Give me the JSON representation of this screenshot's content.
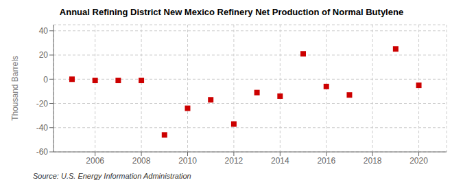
{
  "chart_data": {
    "type": "scatter",
    "title": "Annual Refining District New Mexico Refinery Net Production of Normal Butylene",
    "ylabel": "Thousand Barrels",
    "annotation": "Source: U.S. Energy Information Administration",
    "x": [
      2005,
      2006,
      2007,
      2008,
      2009,
      2010,
      2011,
      2012,
      2013,
      2014,
      2015,
      2016,
      2017,
      2019,
      2020
    ],
    "values": [
      0,
      -1,
      -1,
      -1,
      -46,
      -24,
      -17,
      -37,
      -11,
      -14,
      21,
      -6,
      -13,
      25,
      -5
    ],
    "color": "#cc0000",
    "marker": "square",
    "xlim": [
      2004.2,
      2021.2
    ],
    "ylim": [
      -60,
      45
    ],
    "yticks": [
      -60,
      -40,
      -20,
      0,
      20,
      40
    ],
    "xticks": [
      2006,
      2008,
      2010,
      2012,
      2014,
      2016,
      2018,
      2020
    ],
    "grid": true
  }
}
